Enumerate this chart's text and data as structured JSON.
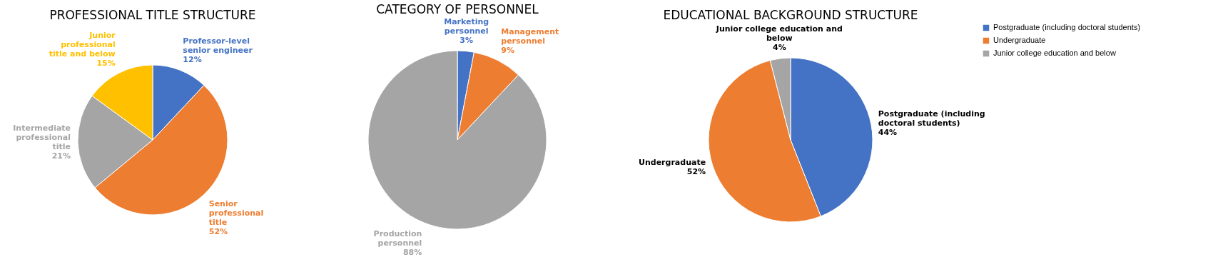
{
  "chart_data": [
    {
      "type": "pie",
      "title": "PROFESSIONAL TITLE STRUCTURE",
      "categories": [
        "Professor-level senior engineer",
        "Senior professional title",
        "Intermediate professional title",
        "Junior professional title and below"
      ],
      "values": [
        12,
        52,
        21,
        15
      ],
      "colors": [
        "#4472c4",
        "#ed7d31",
        "#a5a5a5",
        "#ffc000"
      ],
      "value_labels": [
        "12%",
        "52%",
        "21%",
        "15%"
      ],
      "legend": false
    },
    {
      "type": "pie",
      "title": "CATEGORY OF PERSONNEL",
      "categories": [
        "Marketing personnel",
        "Management personnel",
        "Production personnel"
      ],
      "values": [
        3,
        9,
        88
      ],
      "colors": [
        "#4472c4",
        "#ed7d31",
        "#a5a5a5"
      ],
      "value_labels": [
        "3%",
        "9%",
        "88%"
      ],
      "legend": false
    },
    {
      "type": "pie",
      "title": "EDUCATIONAL BACKGROUND STRUCTURE",
      "categories": [
        "Postgraduate (including doctoral students)",
        "Undergraduate",
        "Junior college education and below"
      ],
      "values": [
        44,
        52,
        4
      ],
      "colors": [
        "#4472c4",
        "#ed7d31",
        "#a5a5a5"
      ],
      "value_labels": [
        "44%",
        "52%",
        "4%"
      ],
      "legend": "right"
    }
  ]
}
